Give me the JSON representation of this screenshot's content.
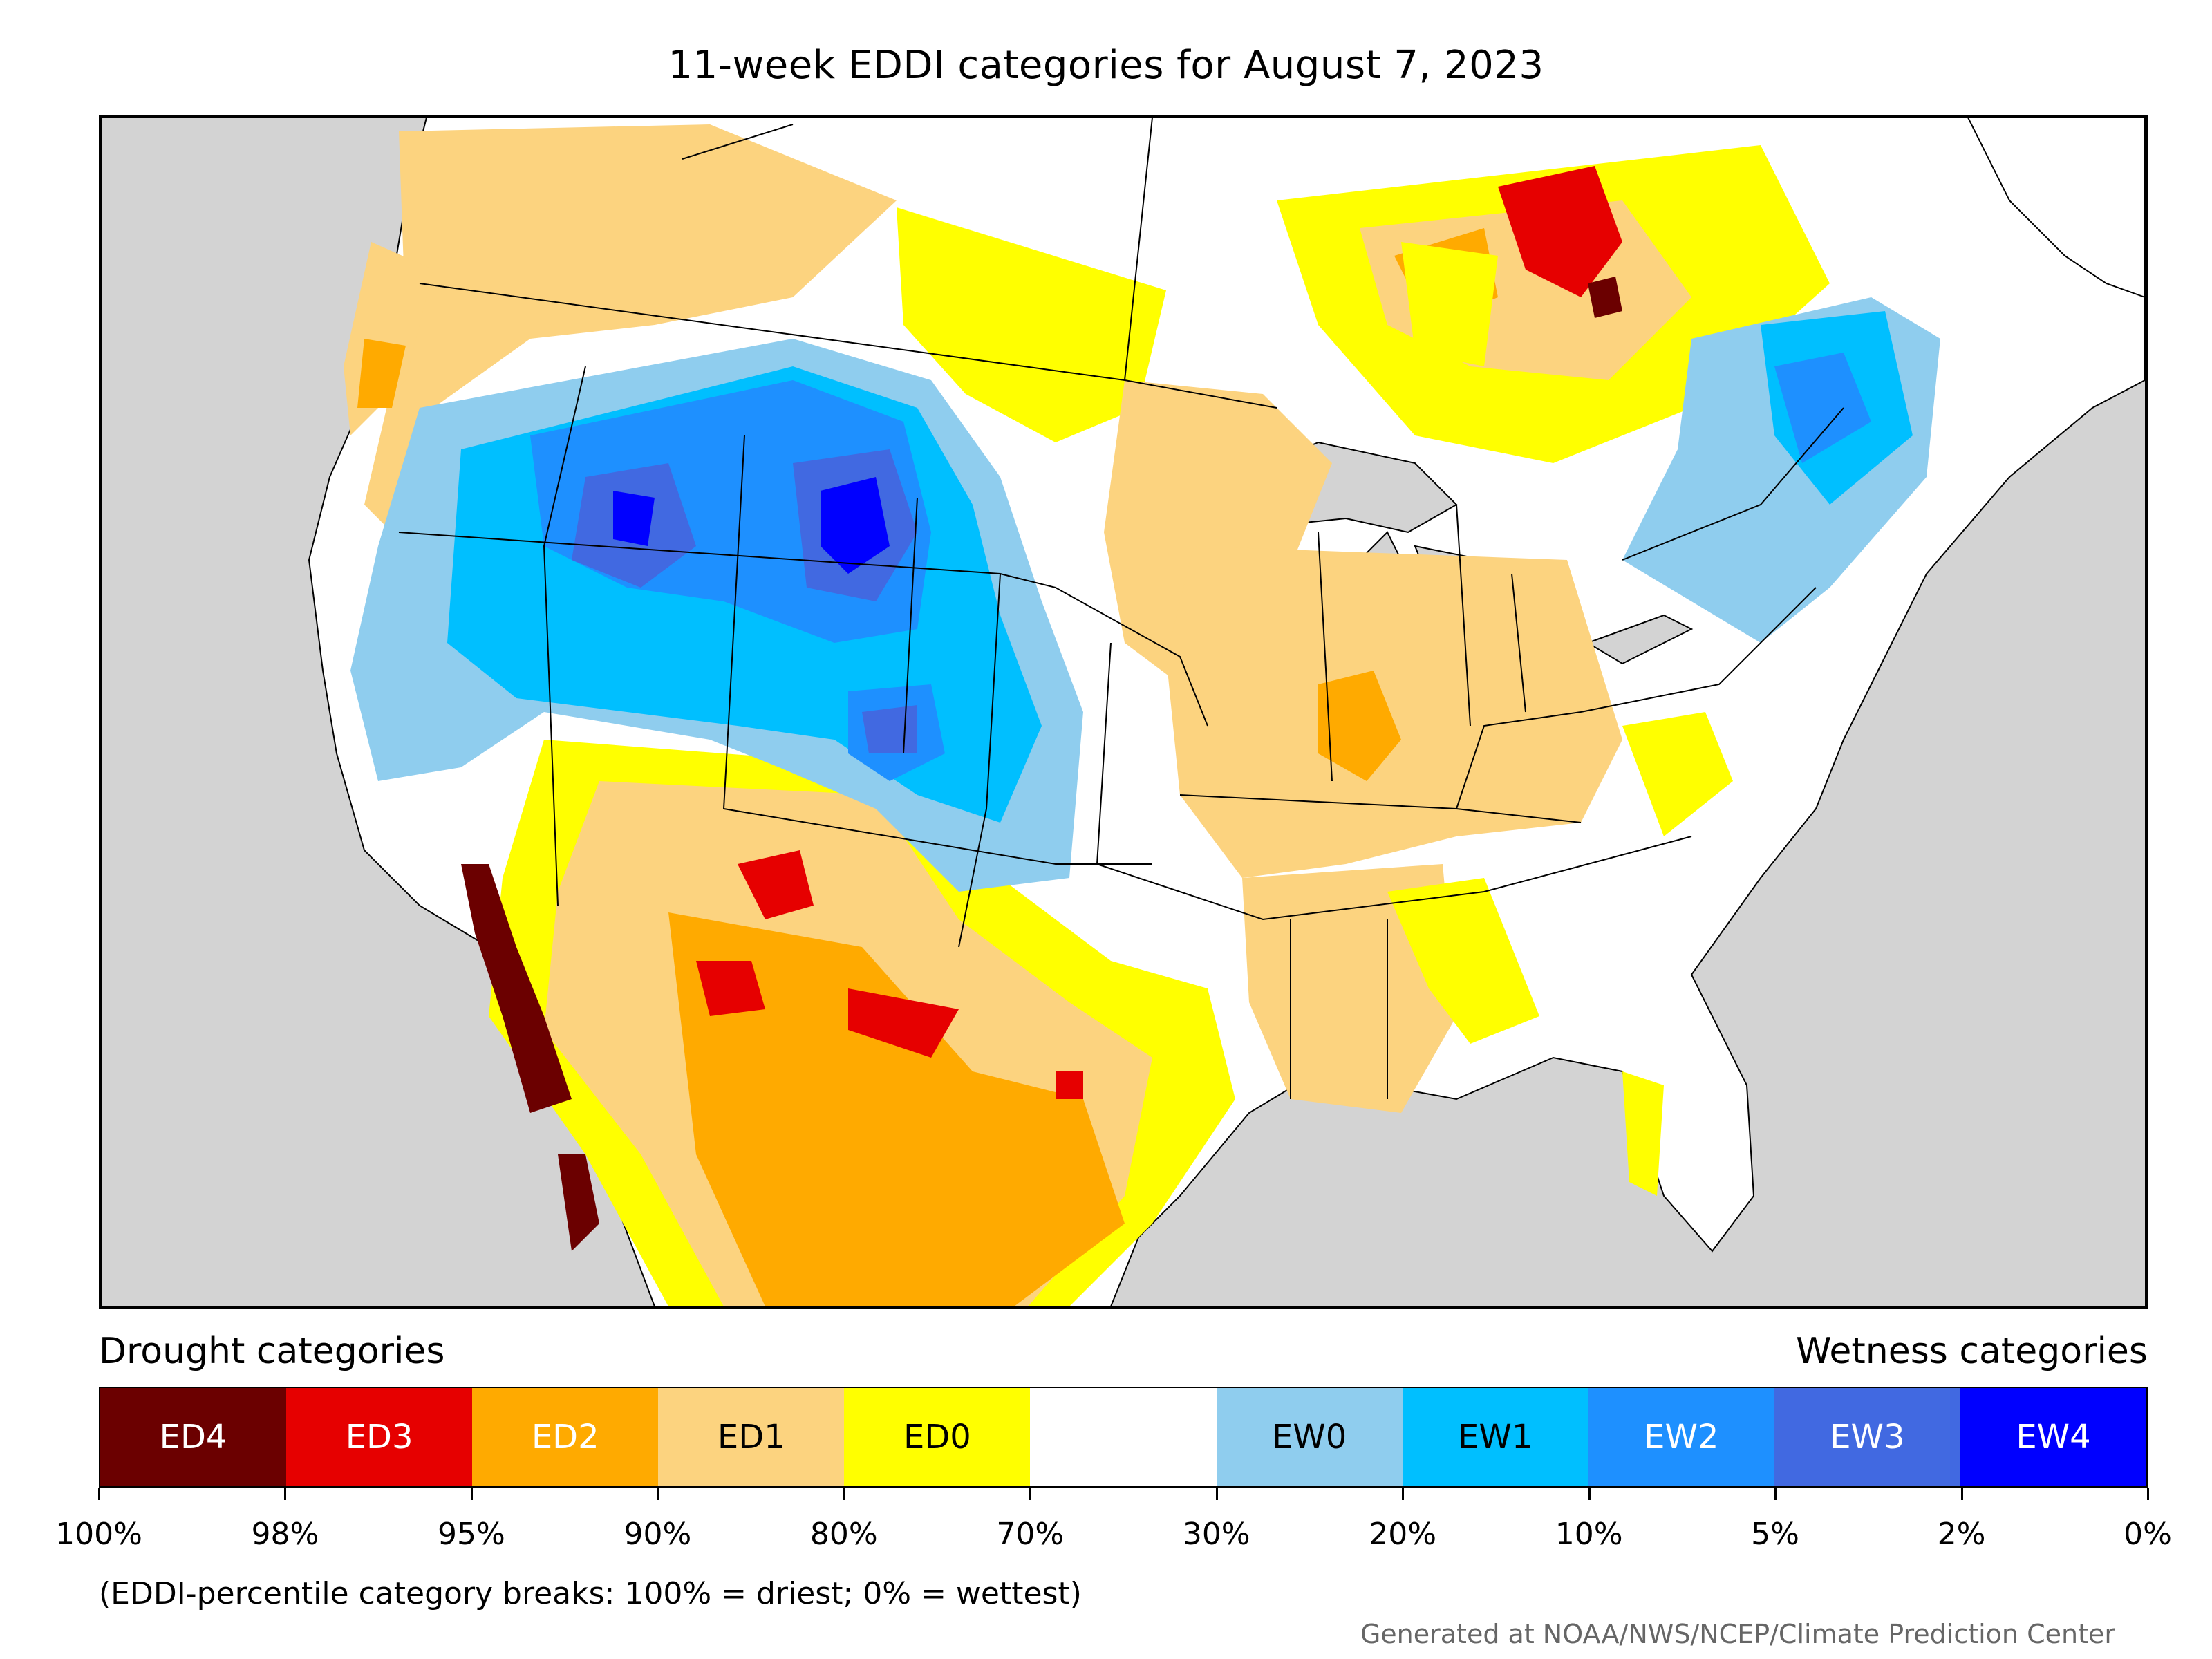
{
  "title": "11-week EDDI categories for August 7, 2023",
  "legend": {
    "drought_heading": "Drought categories",
    "wetness_heading": "Wetness categories",
    "categories": [
      {
        "label": "ED4",
        "color": "#6b0000",
        "text_color": "#ffffff"
      },
      {
        "label": "ED3",
        "color": "#e60000",
        "text_color": "#ffffff"
      },
      {
        "label": "ED2",
        "color": "#ffaa00",
        "text_color": "#ffffff"
      },
      {
        "label": "ED1",
        "color": "#fcd37f",
        "text_color": "#000000"
      },
      {
        "label": "ED0",
        "color": "#ffff00",
        "text_color": "#000000"
      },
      {
        "label": "",
        "color": "#ffffff",
        "text_color": "#000000"
      },
      {
        "label": "EW0",
        "color": "#8fcdee",
        "text_color": "#000000"
      },
      {
        "label": "EW1",
        "color": "#00bfff",
        "text_color": "#000000"
      },
      {
        "label": "EW2",
        "color": "#1e90ff",
        "text_color": "#ffffff"
      },
      {
        "label": "EW3",
        "color": "#4169e1",
        "text_color": "#ffffff"
      },
      {
        "label": "EW4",
        "color": "#0000ff",
        "text_color": "#ffffff"
      }
    ],
    "breaks": [
      "100%",
      "98%",
      "95%",
      "90%",
      "80%",
      "70%",
      "30%",
      "20%",
      "10%",
      "5%",
      "2%",
      "0%"
    ]
  },
  "note": "(EDDI-percentile category breaks: 100% = driest; 0% = wettest)",
  "credit": "Generated at NOAA/NWS/NCEP/Climate Prediction Center",
  "map": {
    "ocean_color": "#d3d3d3",
    "land_color": "#ffffff"
  }
}
